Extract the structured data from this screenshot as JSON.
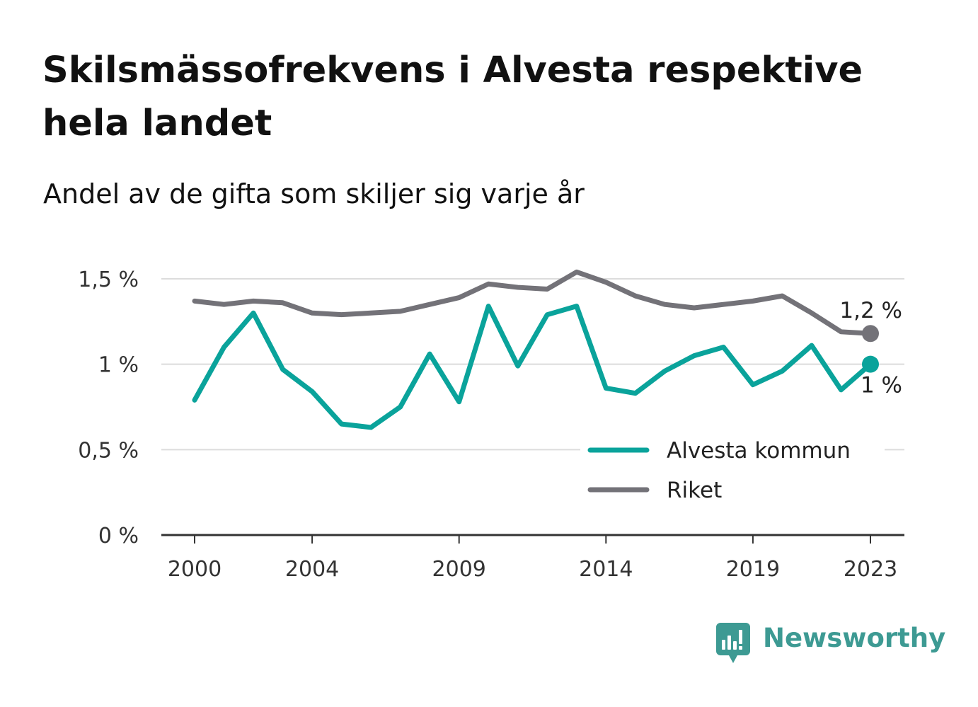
{
  "title": "Skilsmässofrekvens i Alvesta respektive hela landet",
  "subtitle": "Andel av de gifta som skiljer sig varje år",
  "logo": {
    "text": "Newsworthy",
    "icon": "chart-speech-bubble-icon",
    "color": "#3d9a93"
  },
  "chart_data": {
    "type": "line",
    "x": [
      2000,
      2001,
      2002,
      2003,
      2004,
      2005,
      2006,
      2007,
      2008,
      2009,
      2010,
      2011,
      2012,
      2013,
      2014,
      2015,
      2016,
      2017,
      2018,
      2019,
      2020,
      2021,
      2022,
      2023
    ],
    "series": [
      {
        "name": "Alvesta kommun",
        "color": "#0aa39b",
        "values": [
          0.79,
          1.1,
          1.3,
          0.97,
          0.84,
          0.65,
          0.63,
          0.75,
          1.06,
          0.78,
          1.34,
          0.99,
          1.29,
          1.34,
          0.86,
          0.83,
          0.96,
          1.05,
          1.1,
          0.88,
          0.96,
          1.11,
          0.85,
          1.0
        ],
        "end_label": "1 %"
      },
      {
        "name": "Riket",
        "color": "#737278",
        "values": [
          1.37,
          1.35,
          1.37,
          1.36,
          1.3,
          1.29,
          1.3,
          1.31,
          1.35,
          1.39,
          1.47,
          1.45,
          1.44,
          1.54,
          1.48,
          1.4,
          1.35,
          1.33,
          1.35,
          1.37,
          1.4,
          1.3,
          1.19,
          1.18
        ],
        "end_label": "1,2 %"
      }
    ],
    "x_ticks": [
      2000,
      2004,
      2009,
      2014,
      2019,
      2023
    ],
    "x_tick_labels": [
      "2000",
      "2004",
      "2009",
      "2014",
      "2019",
      "2023"
    ],
    "y_ticks": [
      0,
      0.5,
      1,
      1.5
    ],
    "y_tick_labels": [
      "0 %",
      "0,5 %",
      "1 %",
      "1,5 %"
    ],
    "ylim": [
      0,
      1.5
    ],
    "xlim": [
      2000,
      2023
    ],
    "grid": true,
    "legend_position": "bottom-right"
  }
}
